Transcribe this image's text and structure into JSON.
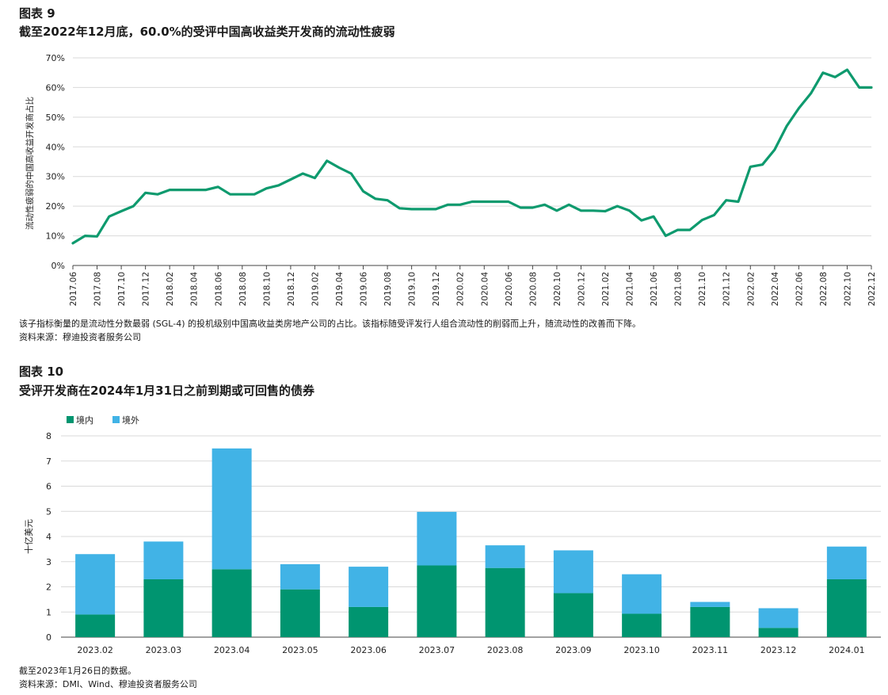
{
  "chart1": {
    "label": "图表 9",
    "title": "截至2022年12月底，60.0%的受评中国高收益类开发商的流动性疲弱",
    "footnote": "该子指标衡量的是流动性分数最弱 (SGL-4) 的投机级别中国高收益类房地产公司的占比。该指标随受评发行人组合流动性的削弱而上升，随流动性的改善而下降。",
    "source": "资料来源：穆迪投资者服务公司"
  },
  "chart2": {
    "label": "图表 10",
    "title": "受评开发商在2024年1月31日之前到期或可回售的债券",
    "footnote": "截至2023年1月26日的数据。",
    "source": "资料来源：DMI、Wind、穆迪投资者服务公司"
  },
  "colors": {
    "line": "#0e9a6e",
    "onshore": "#009570",
    "offshore": "#41b3e6",
    "grid": "#d9d9d9"
  },
  "chart_data": [
    {
      "type": "line",
      "ylabel": "流动性疲弱的中国高收益开发商占比",
      "ylim": [
        0,
        70
      ],
      "yticks": [
        "0%",
        "10%",
        "20%",
        "30%",
        "40%",
        "50%",
        "60%",
        "70%"
      ],
      "yticks_values": [
        0,
        10,
        20,
        30,
        40,
        50,
        60,
        70
      ],
      "x_tick_labels": [
        "2017.06",
        "2017.08",
        "2017.10",
        "2017.12",
        "2018.02",
        "2018.04",
        "2018.06",
        "2018.08",
        "2018.10",
        "2018.12",
        "2019.02",
        "2019.04",
        "2019.06",
        "2019.08",
        "2019.10",
        "2019.12",
        "2020.02",
        "2020.04",
        "2020.06",
        "2020.08",
        "2020.10",
        "2020.12",
        "2021.02",
        "2021.04",
        "2021.06",
        "2021.08",
        "2021.10",
        "2021.12",
        "2022.02",
        "2022.04",
        "2022.06",
        "2022.08",
        "2022.10",
        "2022.12"
      ],
      "x": [
        "2017.06",
        "2017.07",
        "2017.08",
        "2017.09",
        "2017.10",
        "2017.11",
        "2017.12",
        "2018.01",
        "2018.02",
        "2018.03",
        "2018.04",
        "2018.05",
        "2018.06",
        "2018.07",
        "2018.08",
        "2018.09",
        "2018.10",
        "2018.11",
        "2018.12",
        "2019.01",
        "2019.02",
        "2019.03",
        "2019.04",
        "2019.05",
        "2019.06",
        "2019.07",
        "2019.08",
        "2019.09",
        "2019.10",
        "2019.11",
        "2019.12",
        "2020.01",
        "2020.02",
        "2020.03",
        "2020.04",
        "2020.05",
        "2020.06",
        "2020.07",
        "2020.08",
        "2020.09",
        "2020.10",
        "2020.11",
        "2020.12",
        "2021.01",
        "2021.02",
        "2021.03",
        "2021.04",
        "2021.05",
        "2021.06",
        "2021.07",
        "2021.08",
        "2021.09",
        "2021.10",
        "2021.11",
        "2021.12",
        "2022.01",
        "2022.02",
        "2022.03",
        "2022.04",
        "2022.05",
        "2022.06",
        "2022.07",
        "2022.08",
        "2022.09",
        "2022.10",
        "2022.11",
        "2022.12"
      ],
      "values": [
        7.5,
        10,
        9.8,
        16.5,
        18.3,
        20,
        24.5,
        24,
        25.5,
        25.5,
        25.5,
        25.5,
        26.5,
        24,
        24,
        24,
        26,
        27,
        29,
        31,
        29.5,
        35.3,
        33,
        31,
        25,
        22.5,
        22,
        19.3,
        19,
        19,
        19,
        20.5,
        20.5,
        21.5,
        21.5,
        21.5,
        21.5,
        19.5,
        19.5,
        20.5,
        18.5,
        20.5,
        18.5,
        18.5,
        18.3,
        20,
        18.5,
        15.2,
        16.5,
        10,
        12,
        12,
        15.3,
        17,
        22,
        21.5,
        33.3,
        34,
        39,
        47,
        53,
        58,
        65,
        63.5,
        66,
        60,
        60
      ]
    },
    {
      "type": "bar",
      "stacked": true,
      "ylabel": "十亿美元",
      "ylim": [
        0,
        8
      ],
      "yticks": [
        "0",
        "1",
        "2",
        "3",
        "4",
        "5",
        "6",
        "7",
        "8"
      ],
      "yticks_values": [
        0,
        1,
        2,
        3,
        4,
        5,
        6,
        7,
        8
      ],
      "legend_position": "top-left",
      "categories": [
        "2023.02",
        "2023.03",
        "2023.04",
        "2023.05",
        "2023.06",
        "2023.07",
        "2023.08",
        "2023.09",
        "2023.10",
        "2023.11",
        "2023.12",
        "2024.01"
      ],
      "series": [
        {
          "name": "境内",
          "values": [
            0.9,
            2.3,
            2.7,
            1.9,
            1.2,
            2.85,
            2.75,
            1.75,
            0.93,
            1.2,
            0.37,
            2.3
          ]
        },
        {
          "name": "境外",
          "values": [
            2.4,
            1.5,
            4.8,
            1.0,
            1.6,
            2.13,
            0.9,
            1.7,
            1.57,
            0.2,
            0.78,
            1.3
          ]
        }
      ]
    }
  ]
}
